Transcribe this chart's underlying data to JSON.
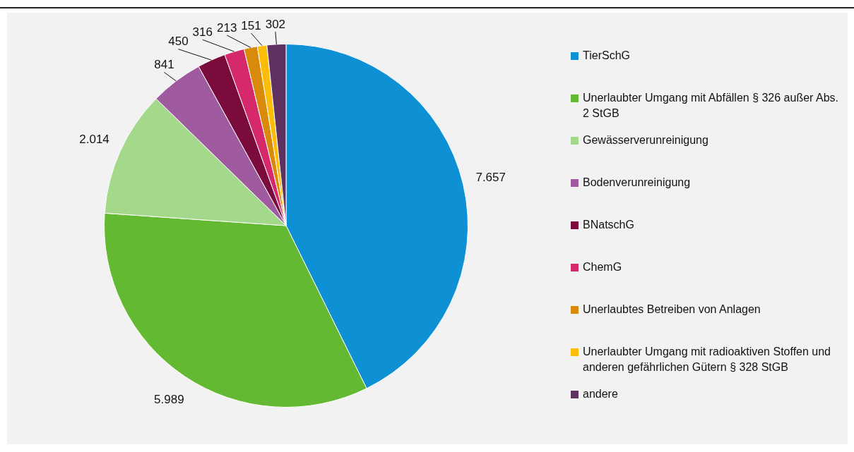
{
  "chart_data": {
    "type": "pie",
    "categories": [
      "TierSchG",
      "Unerlaubter Umgang mit Abfällen § 326 außer Abs. 2 StGB",
      "Gewässerverunreinigung",
      "Bodenverunreinigung",
      "BNatschG",
      "ChemG",
      "Unerlaubtes Betreiben von Anlagen",
      "Unerlaubter Umgang mit radioaktiven Stoffen und anderen gefährlichen Gütern § 328 StGB",
      "andere"
    ],
    "values": [
      7657,
      5989,
      2014,
      841,
      450,
      316,
      213,
      151,
      302
    ],
    "value_labels": [
      "7.657",
      "5.989",
      "2.014",
      "841",
      "450",
      "316",
      "213",
      "151",
      "302"
    ],
    "colors": [
      "#0e90d4",
      "#63b931",
      "#a4d98c",
      "#a05ba0",
      "#7a0b3c",
      "#d6296b",
      "#d98a0b",
      "#fbbd09",
      "#5e3160"
    ],
    "legend": "right"
  }
}
